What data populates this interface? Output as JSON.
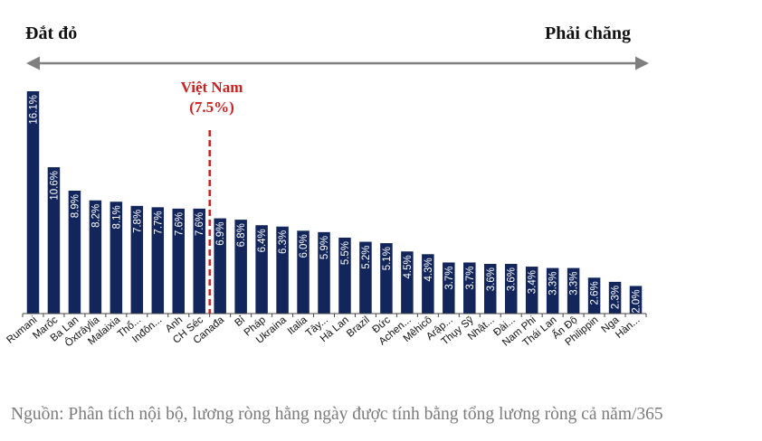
{
  "header": {
    "left_label": "Đắt đỏ",
    "right_label": "Phải chăng"
  },
  "highlight": {
    "name": "Việt Nam",
    "value_text": "(7.5%)",
    "color": "#cc1f1f"
  },
  "source": "Nguồn: Phân tích nội bộ, lương ròng hằng ngày được tính bằng tổng lương ròng cả năm/365",
  "colors": {
    "bar": "#13265c",
    "arrow": "#7f7f7f",
    "axis": "#444444",
    "highlight": "#cc1f1f"
  },
  "chart_data": {
    "type": "bar",
    "orientation": "vertical",
    "categories": [
      "Rumani",
      "Marốc",
      "Ba Lan",
      "Ôxtrâylia",
      "Malaixia",
      "Thổ...",
      "Inđôn...",
      "Anh",
      "CH Séc",
      "Canađa",
      "Bỉ",
      "Pháp",
      "Ukraina",
      "Italia",
      "Tây...",
      "Hà Lan",
      "Brazil",
      "Đức",
      "Achen...",
      "Mêhicô",
      "Arập...",
      "Thụy Sỹ",
      "Nhật...",
      "Đài...",
      "Nam Phi",
      "Thái Lan",
      "Ấn Độ",
      "Philippin",
      "Nga",
      "Hàn..."
    ],
    "values": [
      16.1,
      10.6,
      8.9,
      8.2,
      8.1,
      7.8,
      7.7,
      7.6,
      7.6,
      6.9,
      6.8,
      6.4,
      6.3,
      6.0,
      5.9,
      5.5,
      5.2,
      5.1,
      4.5,
      4.3,
      3.7,
      3.7,
      3.6,
      3.6,
      3.4,
      3.3,
      3.3,
      2.6,
      2.3,
      2.0
    ],
    "data_labels": [
      "16.1%",
      "10.6%",
      "8.9%",
      "8.2%",
      "8.1%",
      "7.8%",
      "7.7%",
      "7.6%",
      "7.6%",
      "6.9%",
      "6.8%",
      "6.4%",
      "6.3%",
      "6.0%",
      "5.9%",
      "5.5%",
      "5.2%",
      "5.1%",
      "4.5%",
      "4.3%",
      "3.7%",
      "3.7%",
      "3.6%",
      "3.6%",
      "3.4%",
      "3.3%",
      "3.3%",
      "2.6%",
      "2.3%",
      "2.0%"
    ],
    "reference_line": {
      "value": 7.5,
      "between": [
        "CH Séc",
        "Canađa"
      ],
      "style": "dashed"
    },
    "ylim": [
      0,
      16.1
    ],
    "y_axis_visible": false,
    "grid": false,
    "legend": false
  }
}
